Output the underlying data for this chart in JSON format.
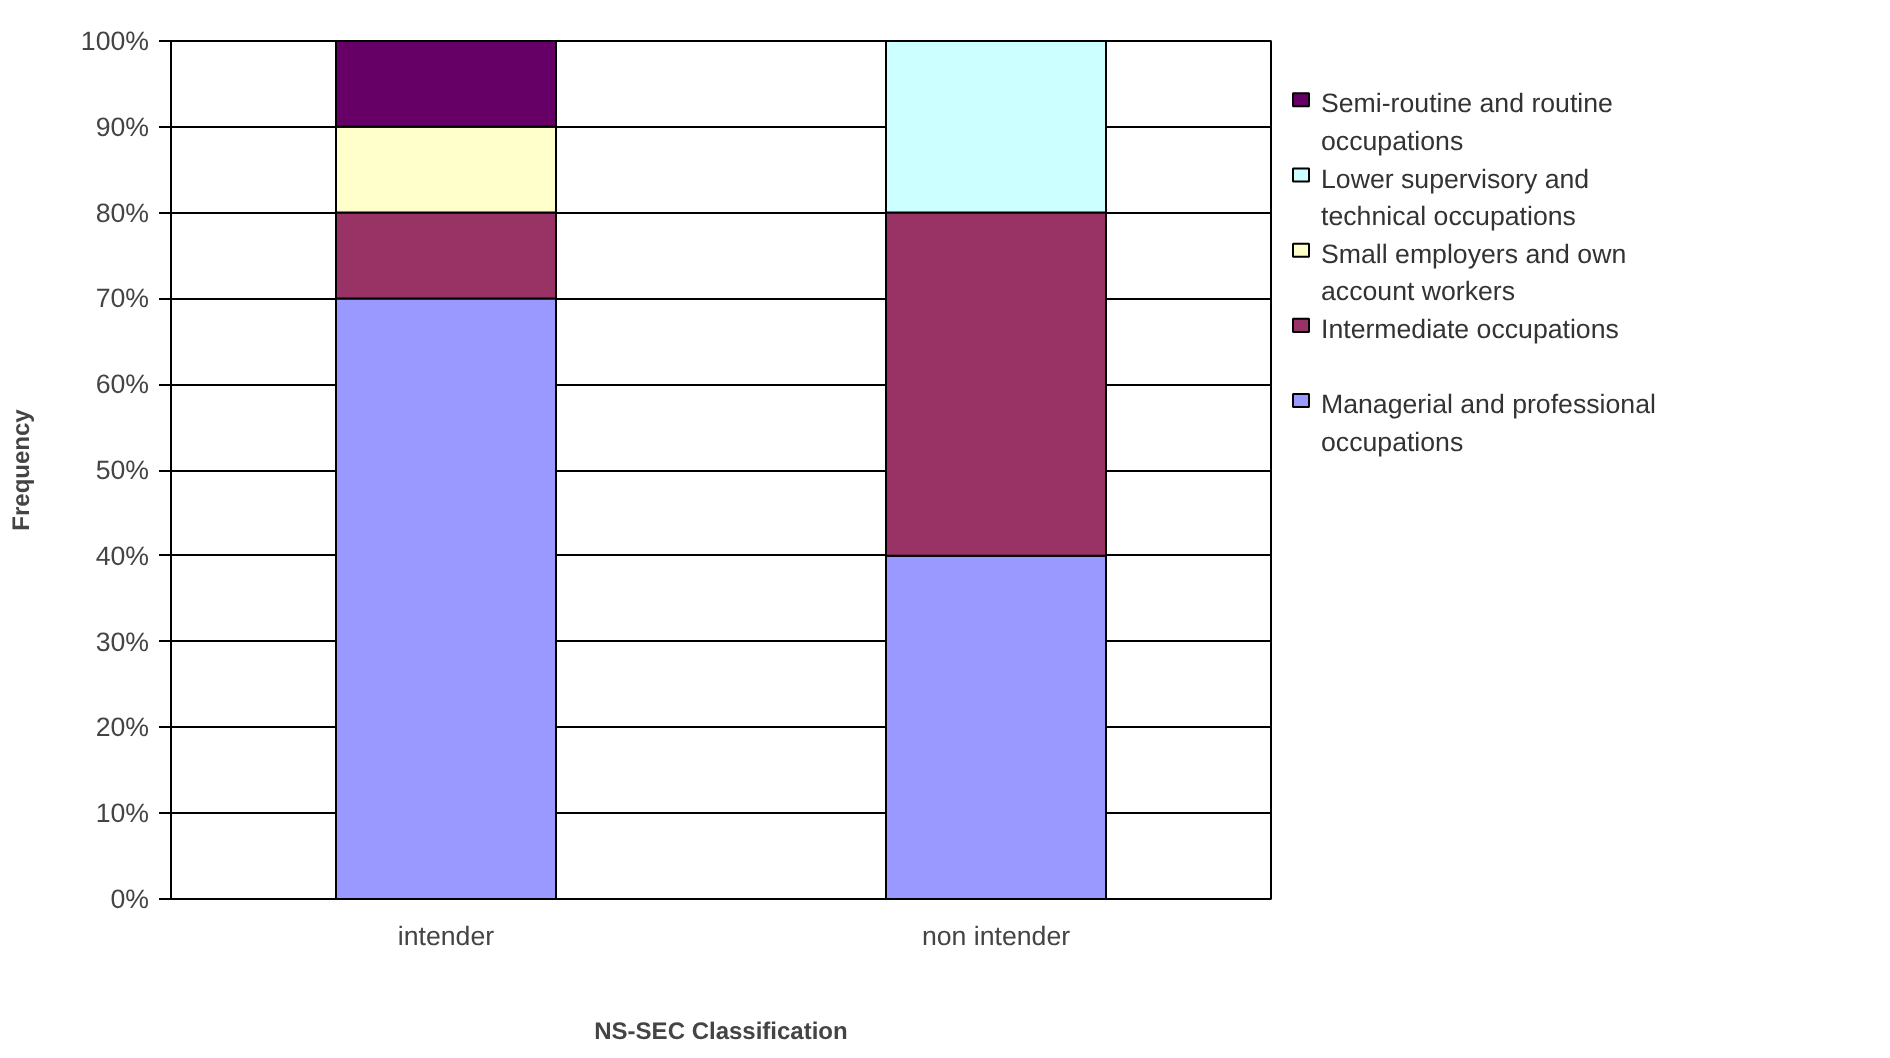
{
  "chart_data": {
    "type": "bar",
    "stacked": true,
    "xlabel": "NS-SEC Classification",
    "ylabel": "Frequency",
    "categories": [
      "intender",
      "non intender"
    ],
    "series": [
      {
        "name": "Managerial and professional occupations",
        "color": "#9999ff",
        "values": [
          70,
          40
        ]
      },
      {
        "name": "Intermediate occupations",
        "color": "#993366",
        "values": [
          10,
          40
        ]
      },
      {
        "name": "Small employers and own account workers",
        "color": "#ffffcc",
        "values": [
          10,
          0
        ]
      },
      {
        "name": "Lower supervisory and technical occupations",
        "color": "#ccffff",
        "values": [
          0,
          20
        ]
      },
      {
        "name": "Semi-routine and routine occupations",
        "color": "#660066",
        "values": [
          10,
          0
        ]
      }
    ],
    "ylim": [
      0,
      100
    ],
    "yticks": [
      {
        "value": 0,
        "label": "0%"
      },
      {
        "value": 10,
        "label": "10%"
      },
      {
        "value": 20,
        "label": "20%"
      },
      {
        "value": 30,
        "label": "30%"
      },
      {
        "value": 40,
        "label": "40%"
      },
      {
        "value": 50,
        "label": "50%"
      },
      {
        "value": 60,
        "label": "60%"
      },
      {
        "value": 70,
        "label": "70%"
      },
      {
        "value": 80,
        "label": "80%"
      },
      {
        "value": 90,
        "label": "90%"
      },
      {
        "value": 100,
        "label": "100%"
      }
    ],
    "grid": "y",
    "legend": "right"
  }
}
